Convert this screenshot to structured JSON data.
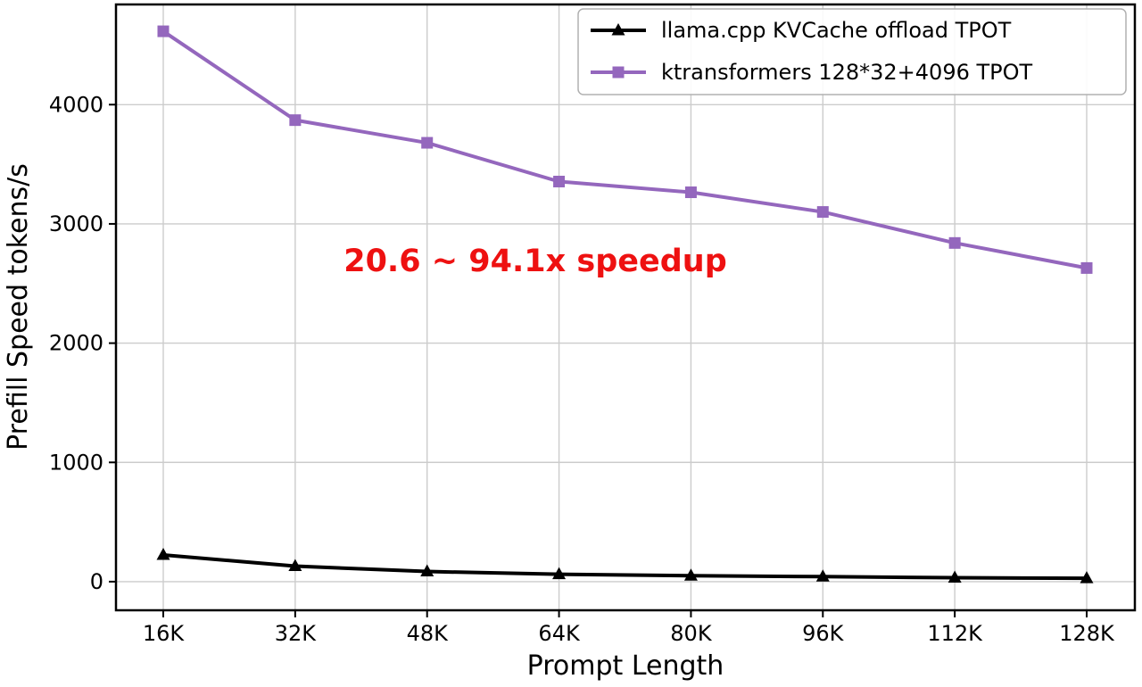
{
  "chart_data": {
    "type": "line",
    "title": "",
    "xlabel": "Prompt Length",
    "ylabel": "Prefill Speed tokens/s",
    "categories": [
      "16K",
      "32K",
      "48K",
      "64K",
      "80K",
      "96K",
      "112K",
      "128K"
    ],
    "series": [
      {
        "name": "llama.cpp KVCache offload TPOT",
        "color": "#000000",
        "marker": "triangle",
        "values": [
          224,
          130,
          85,
          62,
          50,
          42,
          33,
          28
        ]
      },
      {
        "name": "ktransformers 128*32+4096 TPOT",
        "color": "#9467bd",
        "marker": "square",
        "values": [
          4615,
          3870,
          3680,
          3355,
          3265,
          3100,
          2840,
          2630
        ]
      }
    ],
    "yticks": [
      0,
      1000,
      2000,
      3000,
      4000
    ],
    "ylim": [
      -240,
      4840
    ],
    "grid": true,
    "legend_position": "top-right",
    "annotation": {
      "text": "20.6 ~ 94.1x speedup",
      "color": "#ee1111"
    },
    "colors": {
      "grid": "#cccccc",
      "axis": "#000000"
    }
  }
}
